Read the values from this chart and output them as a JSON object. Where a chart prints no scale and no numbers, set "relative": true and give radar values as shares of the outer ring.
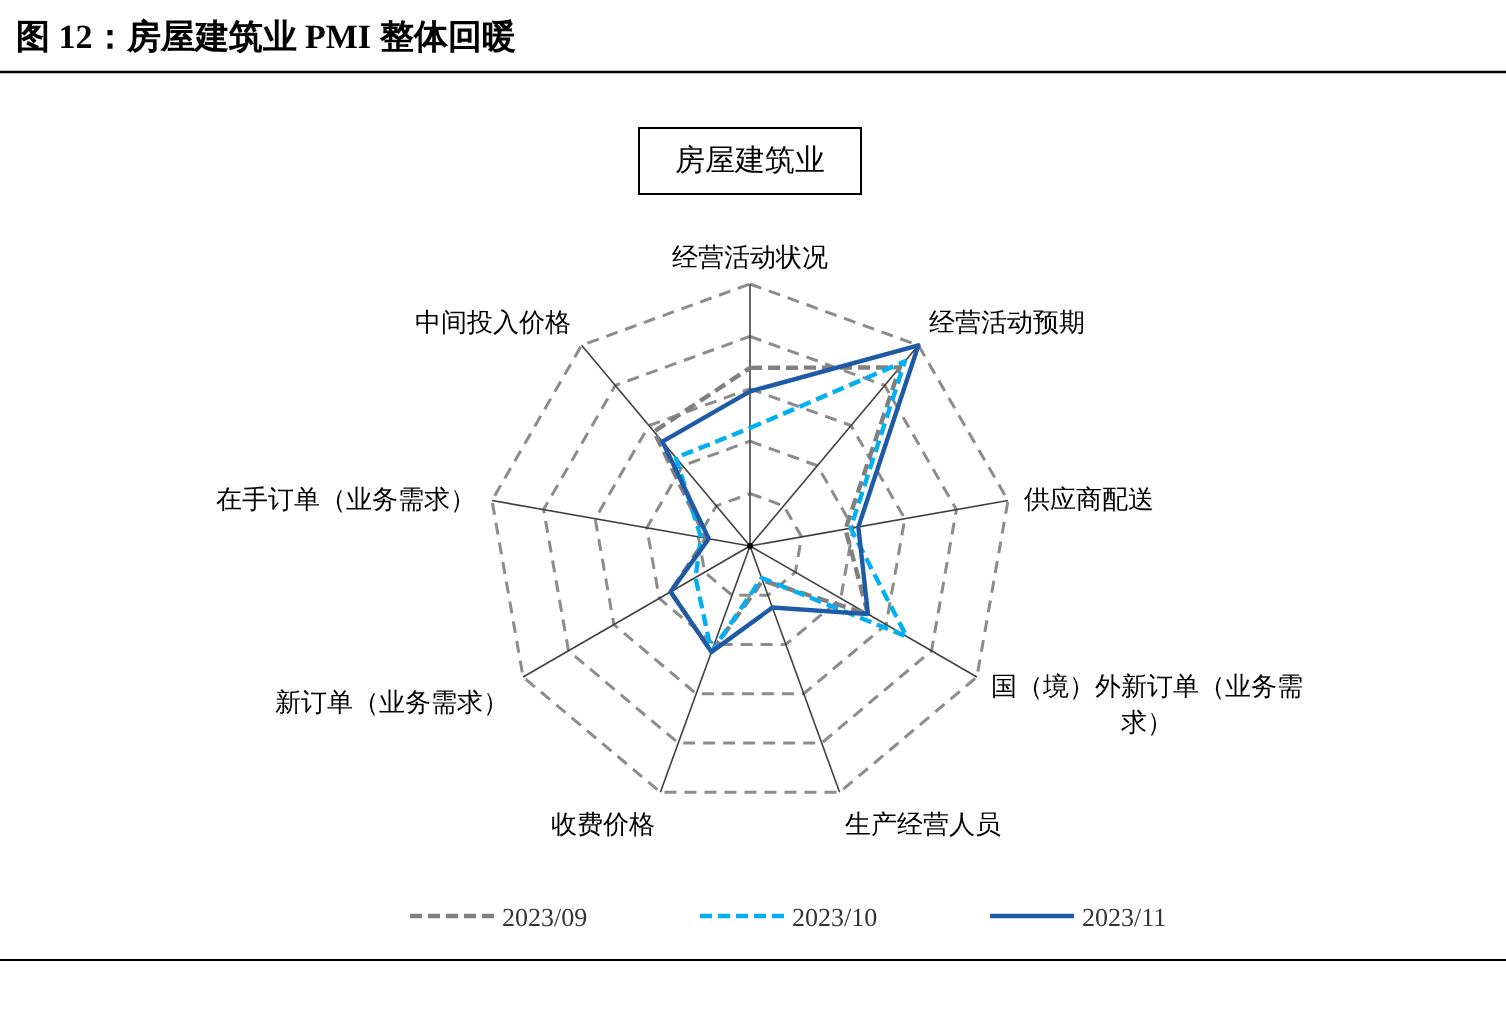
{
  "chart_data": {
    "type": "radar",
    "title": "图 12：房屋建筑业 PMI 整体回暖",
    "subtitle": "房屋建筑业",
    "relative": true,
    "grid": true,
    "legend": "bottom",
    "marker": "none",
    "categories": [
      "经营活动状况",
      "经营活动预期",
      "供应商配送",
      "国（境）外新订单（业务需求）",
      "生产经营人员",
      "收费价格",
      "新订单（业务需求）",
      "在手订单（业务需求）",
      "中间投入价格"
    ],
    "series": [
      {
        "name": "2023/09",
        "color": "#808080",
        "line_style": "dashed",
        "values": [
          0.68,
          0.89,
          0.37,
          0.52,
          0.14,
          0.43,
          0.35,
          0.17,
          0.57
        ]
      },
      {
        "name": "2023/10",
        "color": "#00b0f0",
        "line_style": "dashed",
        "values": [
          0.45,
          0.92,
          0.39,
          0.69,
          0.13,
          0.43,
          0.24,
          0.19,
          0.44
        ]
      },
      {
        "name": "2023/11",
        "color": "#1f5aa6",
        "line_style": "solid",
        "values": [
          0.59,
          1.0,
          0.42,
          0.52,
          0.25,
          0.43,
          0.35,
          0.16,
          0.52
        ]
      }
    ]
  }
}
